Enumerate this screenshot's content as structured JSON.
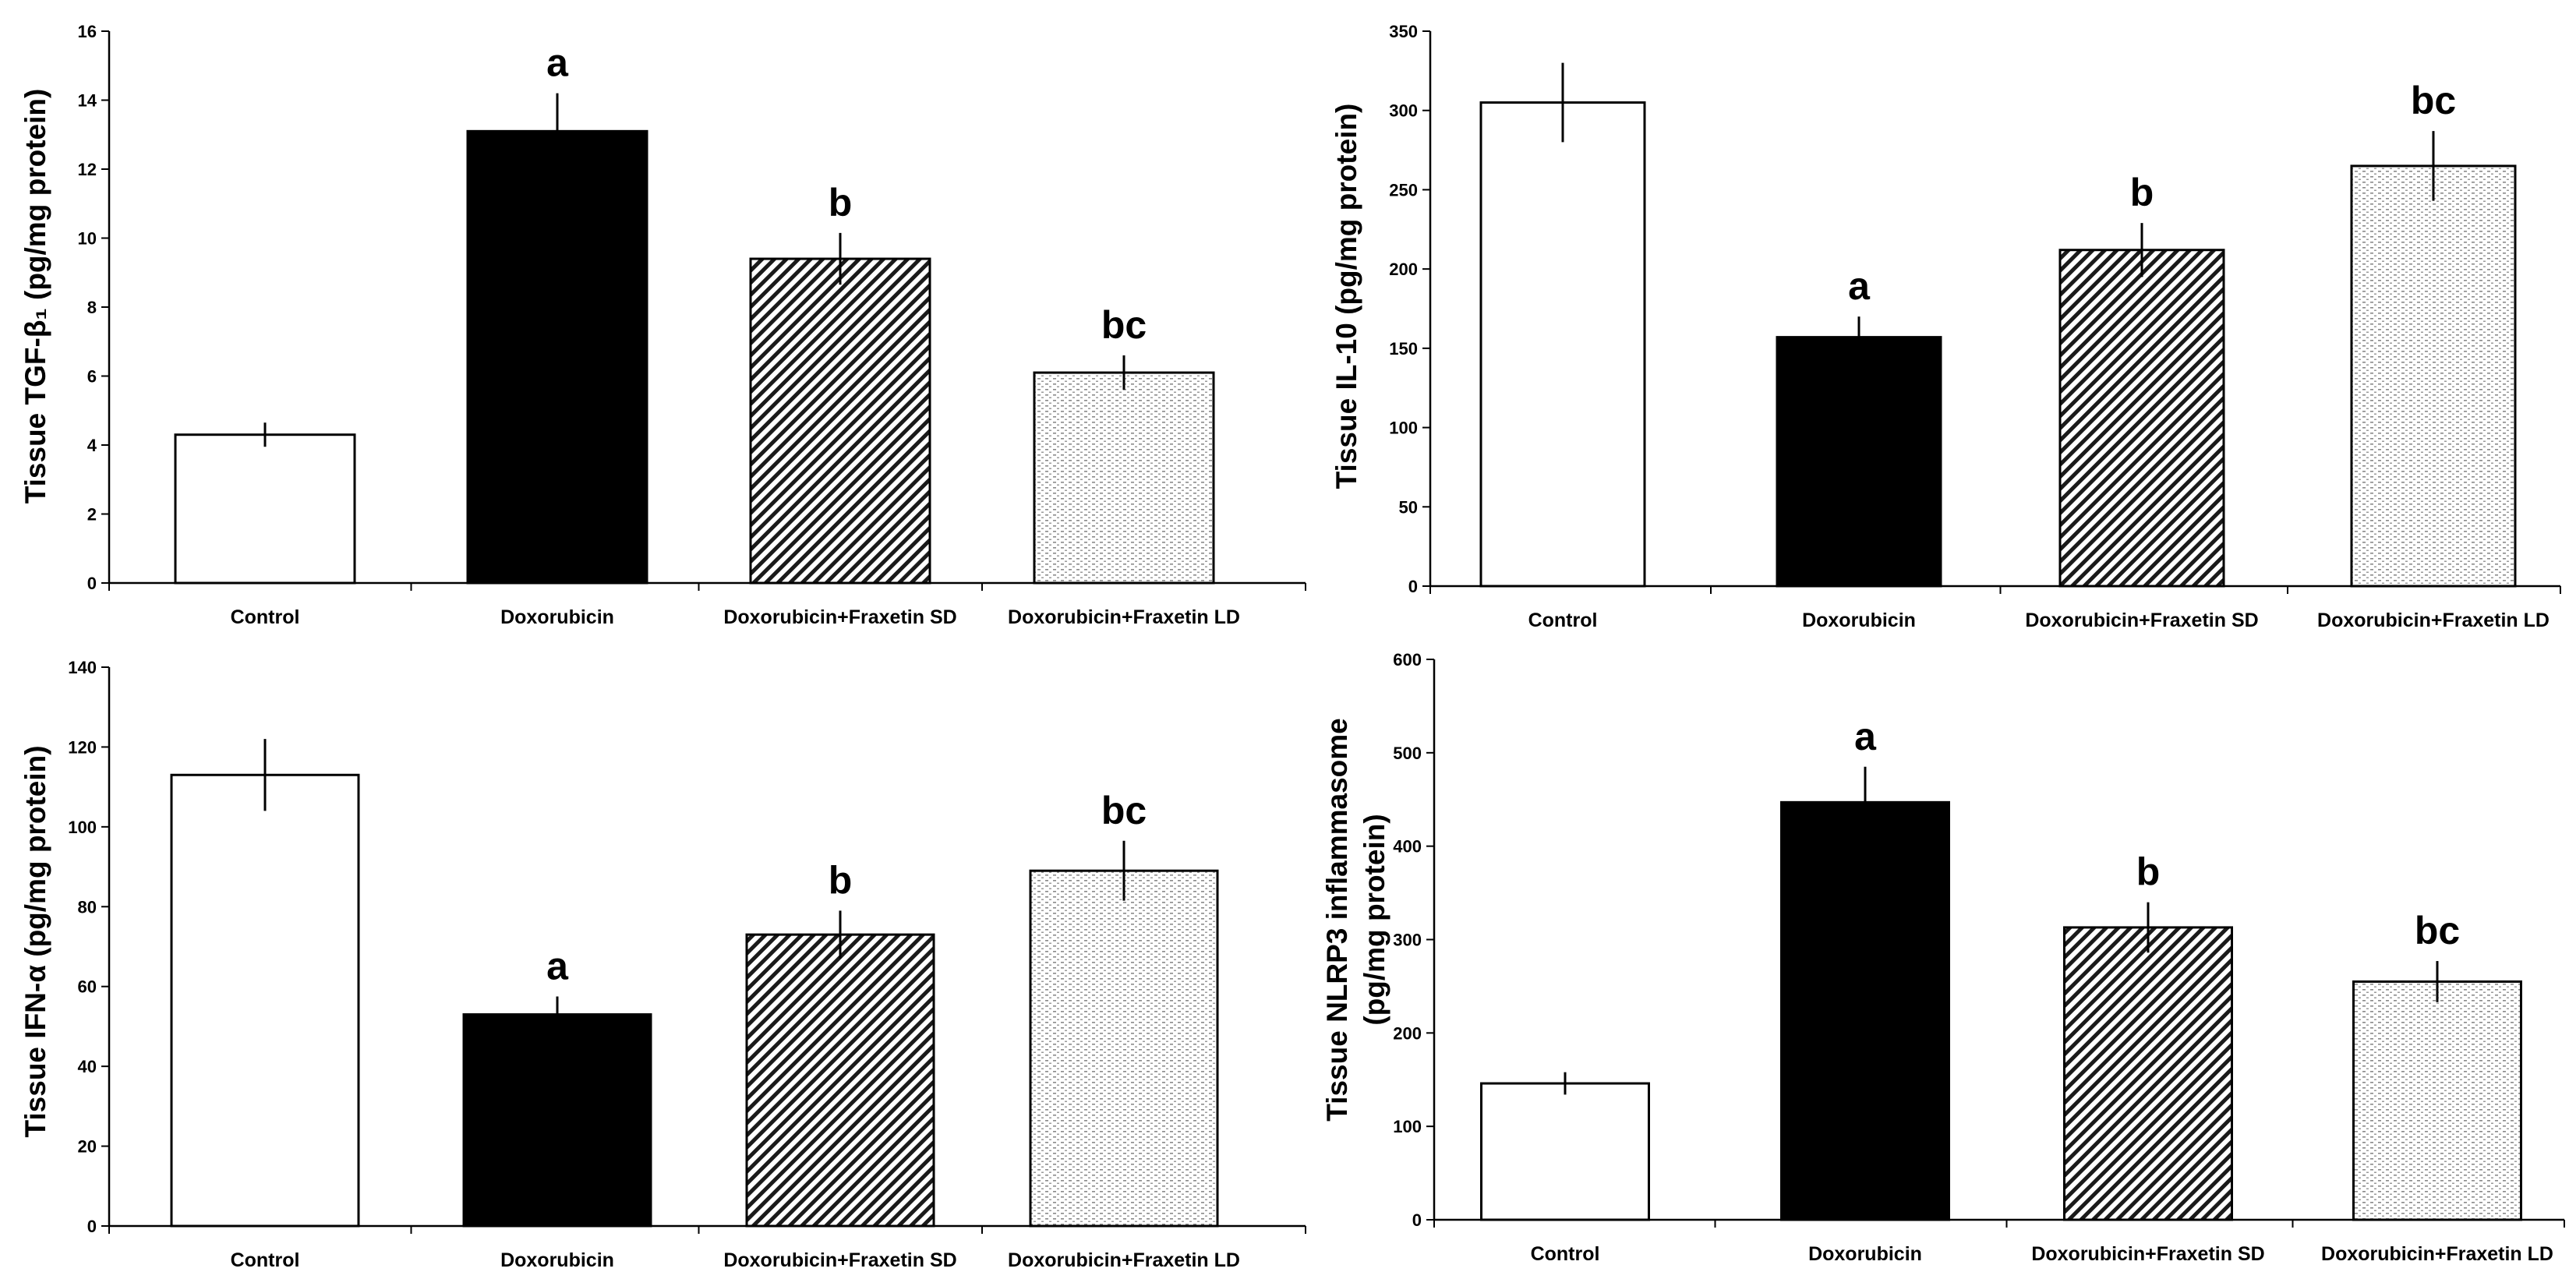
{
  "chart_data": [
    {
      "type": "bar",
      "ylabel": "Tissue TGF-β₁ (pg/mg protein)",
      "ylim": [
        0,
        16
      ],
      "yticks": [
        0,
        2,
        4,
        6,
        8,
        10,
        12,
        14,
        16
      ],
      "categories": [
        "Control",
        "Doxorubicin",
        "Doxorubicin+Fraxetin SD",
        "Doxorubicin+Fraxetin LD"
      ],
      "values": [
        4.3,
        13.1,
        9.4,
        6.1
      ],
      "errors": [
        0.35,
        1.1,
        0.75,
        0.5
      ],
      "significance": [
        "",
        "a",
        "b",
        "bc"
      ],
      "fills": [
        "white",
        "black",
        "diagonal",
        "dotted"
      ]
    },
    {
      "type": "bar",
      "ylabel": "Tissue IL-10 (pg/mg protein)",
      "ylim": [
        0,
        350
      ],
      "yticks": [
        0,
        50,
        100,
        150,
        200,
        250,
        300,
        350
      ],
      "categories": [
        "Control",
        "Doxorubicin",
        "Doxorubicin+Fraxetin SD",
        "Doxorubicin+Fraxetin LD"
      ],
      "values": [
        305,
        157,
        212,
        265
      ],
      "errors": [
        25,
        13,
        17,
        22
      ],
      "significance": [
        "",
        "a",
        "b",
        "bc"
      ],
      "fills": [
        "white",
        "black",
        "diagonal",
        "dotted"
      ]
    },
    {
      "type": "bar",
      "ylabel": "Tissue IFN-α (pg/mg protein)",
      "ylim": [
        0,
        140
      ],
      "yticks": [
        0,
        20,
        40,
        60,
        80,
        100,
        120,
        140
      ],
      "categories": [
        "Control",
        "Doxorubicin",
        "Doxorubicin+Fraxetin SD",
        "Doxorubicin+Fraxetin LD"
      ],
      "values": [
        113,
        53,
        73,
        89
      ],
      "errors": [
        9,
        4.5,
        6,
        7.5
      ],
      "significance": [
        "",
        "a",
        "b",
        "bc"
      ],
      "fills": [
        "white",
        "black",
        "diagonal",
        "dotted"
      ]
    },
    {
      "type": "bar",
      "ylabel": "Tissue NLRP3 inflammasome (pg/mg protein)",
      "ylabel_lines": [
        "Tissue NLRP3 inflammasome",
        "(pg/mg protein)"
      ],
      "ylim": [
        0,
        600
      ],
      "yticks": [
        0,
        100,
        200,
        300,
        400,
        500,
        600
      ],
      "categories": [
        "Control",
        "Doxorubicin",
        "Doxorubicin+Fraxetin SD",
        "Doxorubicin+Fraxetin LD"
      ],
      "values": [
        146,
        447,
        313,
        255
      ],
      "errors": [
        12,
        38,
        27,
        22
      ],
      "significance": [
        "",
        "a",
        "b",
        "bc"
      ],
      "fills": [
        "white",
        "black",
        "diagonal",
        "dotted"
      ]
    }
  ]
}
